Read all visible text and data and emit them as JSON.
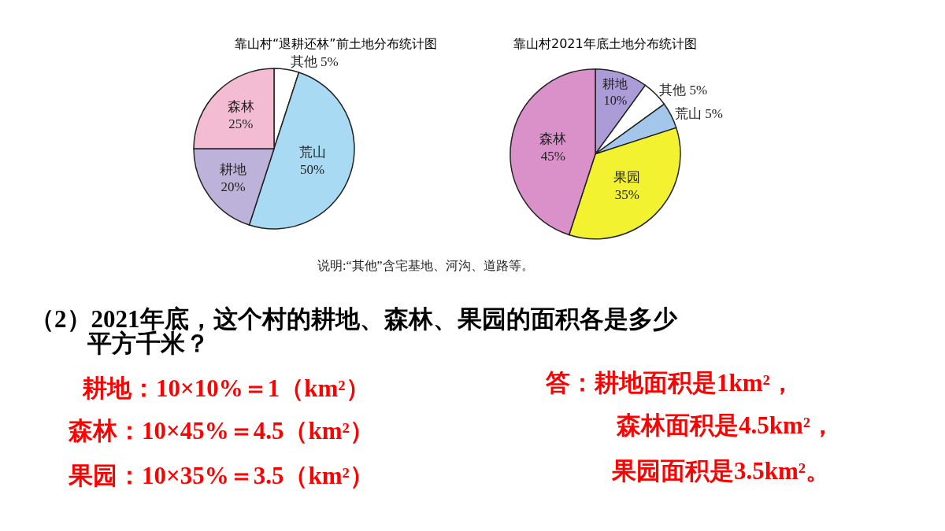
{
  "chart_data": [
    {
      "type": "pie",
      "title": "靠山村“退耕还林”前土地分布统计图",
      "categories": [
        "其他",
        "荒山",
        "耕地",
        "森林"
      ],
      "values": [
        5,
        50,
        20,
        25
      ],
      "value_labels": [
        "5%",
        "50%",
        "20%",
        "25%"
      ],
      "colors": [
        "#ffffff",
        "#a9daf4",
        "#bdb2da",
        "#f4bcd2"
      ],
      "annotations": [
        "说明:“其他”含宅基地、河沟、道路等。"
      ]
    },
    {
      "type": "pie",
      "title": "靠山村2021年底土地分布统计图",
      "categories": [
        "耕地",
        "其他",
        "荒山",
        "果园",
        "森林"
      ],
      "values": [
        10,
        5,
        5,
        35,
        45
      ],
      "value_labels": [
        "10%",
        "5%",
        "5%",
        "35%",
        "45%"
      ],
      "colors": [
        "#ab9bd6",
        "#ffffff",
        "#a3c6ea",
        "#f2f230",
        "#da90c9"
      ]
    },
    {
      "type": "other",
      "annotations": [
        "（2）2021年底，这个村的耕地、森林、果园的面积各是多少",
        "平方千米？",
        "耕地：10×10%＝1（km²）",
        "森林：10×45%＝4.5（km²）",
        "果园：10×35%＝3.5（km²）",
        "答：耕地面积是1km²，",
        "森林面积是4.5km²，",
        "果园面积是3.5km²。"
      ]
    }
  ]
}
